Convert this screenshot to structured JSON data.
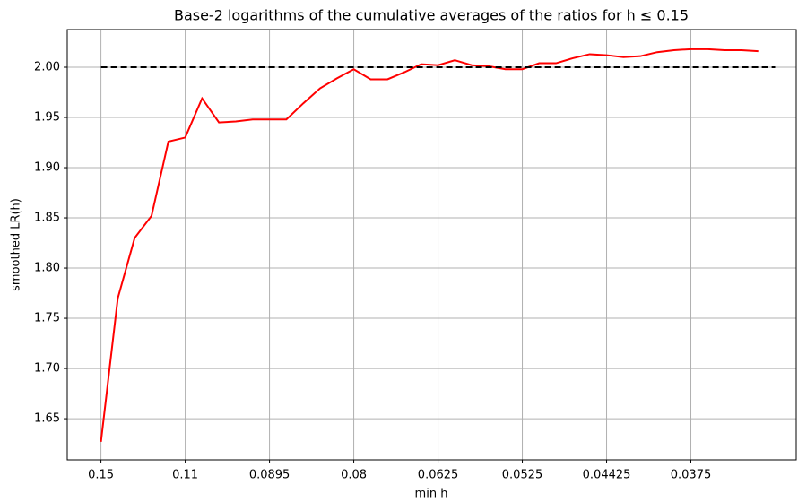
{
  "chart_data": {
    "type": "line",
    "title": "Base-2 logarithms of the cumulative averages of the ratios for h ≤ 0.15",
    "xlabel": "min h",
    "ylabel": "smoothed LR(h)",
    "categories": [
      "0.15",
      null,
      null,
      null,
      null,
      "0.11",
      null,
      null,
      null,
      null,
      "0.0895",
      null,
      null,
      null,
      null,
      "0.08",
      null,
      null,
      null,
      null,
      "0.0625",
      null,
      null,
      null,
      null,
      "0.0525",
      null,
      null,
      null,
      null,
      "0.04425",
      null,
      null,
      null,
      null,
      "0.0375",
      null,
      null,
      null,
      null,
      null
    ],
    "series": [
      {
        "color": "#ff0000",
        "style": "solid",
        "values": [
          1.627,
          1.77,
          1.83,
          1.852,
          1.926,
          1.93,
          1.969,
          1.945,
          1.946,
          1.948,
          1.948,
          1.948,
          1.964,
          1.979,
          1.989,
          1.998,
          1.988,
          1.988,
          1.995,
          2.003,
          2.002,
          2.007,
          2.002,
          2.001,
          1.998,
          1.998,
          2.004,
          2.004,
          2.009,
          2.013,
          2.012,
          2.01,
          2.011,
          2.015,
          2.017,
          2.018,
          2.018,
          2.017,
          2.017,
          2.016,
          null
        ]
      },
      {
        "color": "#000000",
        "style": "dashed",
        "values": [
          2,
          2,
          2,
          2,
          2,
          2,
          2,
          2,
          2,
          2,
          2,
          2,
          2,
          2,
          2,
          2,
          2,
          2,
          2,
          2,
          2,
          2,
          2,
          2,
          2,
          2,
          2,
          2,
          2,
          2,
          2,
          2,
          2,
          2,
          2,
          2,
          2,
          2,
          2,
          2,
          2
        ]
      }
    ],
    "xlim": [
      -2,
      41.25
    ],
    "ylim": [
      1.609,
      2.0375
    ],
    "yticks": [
      1.65,
      {
        "value": 1.7,
        "label": "1.70"
      },
      1.75,
      {
        "value": 1.8,
        "label": "1.80"
      },
      1.85,
      {
        "value": 1.9,
        "label": "1.90"
      },
      1.95,
      {
        "value": 2,
        "label": "2.00"
      }
    ],
    "grid": true
  }
}
